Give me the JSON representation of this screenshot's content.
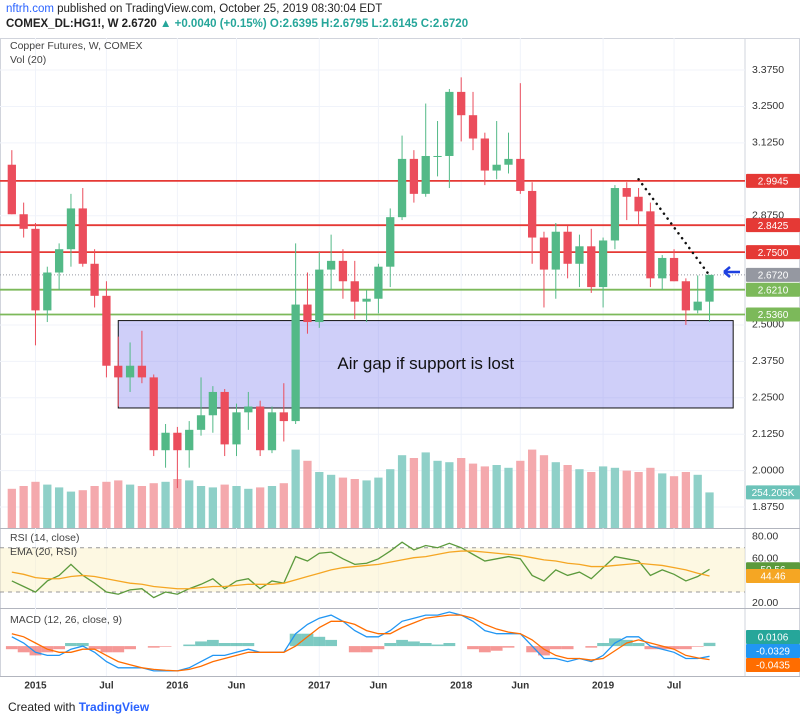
{
  "header": {
    "site": "nftrh.com",
    "published": "published on TradingView.com, October 25, 2019 08:30:04 EDT",
    "symbol": "COMEX_DL:HG1!, W",
    "price": "2.6720",
    "change": "+0.0040 (+0.15%)",
    "ohlc": "O:2.6395 H:2.6795 L:2.6145 C:2.6720"
  },
  "footer": {
    "prefix": "Created with",
    "brand": "TradingView"
  },
  "chart_data": [
    {
      "type": "candlestick",
      "title": "Copper Futures, W, COMEX",
      "x": [
        "2014-11",
        "2014-12",
        "2015-01",
        "2015-02",
        "2015-03",
        "2015-04",
        "2015-05",
        "2015-06",
        "2015-07",
        "2015-08",
        "2015-09",
        "2015-10",
        "2015-11",
        "2015-12",
        "2016-01",
        "2016-02",
        "2016-03",
        "2016-04",
        "2016-05",
        "2016-06",
        "2016-07",
        "2016-08",
        "2016-09",
        "2016-10",
        "2016-11",
        "2016-12",
        "2017-01",
        "2017-02",
        "2017-03",
        "2017-04",
        "2017-05",
        "2017-06",
        "2017-07",
        "2017-08",
        "2017-09",
        "2017-10",
        "2017-11",
        "2017-12",
        "2018-01",
        "2018-02",
        "2018-03",
        "2018-04",
        "2018-05",
        "2018-06",
        "2018-07",
        "2018-08",
        "2018-09",
        "2018-10",
        "2018-11",
        "2018-12",
        "2019-01",
        "2019-02",
        "2019-03",
        "2019-04",
        "2019-05",
        "2019-06",
        "2019-07",
        "2019-08",
        "2019-09",
        "2019-10"
      ],
      "open": [
        3.05,
        2.88,
        2.83,
        2.55,
        2.68,
        2.76,
        2.9,
        2.71,
        2.6,
        2.36,
        2.32,
        2.36,
        2.32,
        2.07,
        2.13,
        2.07,
        2.14,
        2.19,
        2.27,
        2.09,
        2.2,
        2.22,
        2.07,
        2.2,
        2.17,
        2.57,
        2.51,
        2.69,
        2.72,
        2.65,
        2.58,
        2.59,
        2.7,
        2.87,
        3.07,
        2.95,
        3.08,
        3.08,
        3.3,
        3.22,
        3.14,
        3.03,
        3.05,
        3.07,
        2.96,
        2.8,
        2.69,
        2.82,
        2.71,
        2.77,
        2.63,
        2.79,
        2.97,
        2.94,
        2.89,
        2.66,
        2.73,
        2.65,
        2.55,
        2.58
      ],
      "high": [
        3.1,
        2.92,
        2.85,
        2.7,
        2.78,
        2.95,
        2.97,
        2.76,
        2.65,
        2.46,
        2.44,
        2.48,
        2.33,
        2.16,
        2.15,
        2.17,
        2.32,
        2.29,
        2.28,
        2.23,
        2.27,
        2.24,
        2.22,
        2.3,
        2.78,
        2.68,
        2.75,
        2.81,
        2.76,
        2.72,
        2.62,
        2.71,
        2.9,
        3.15,
        3.1,
        3.26,
        3.2,
        3.31,
        3.35,
        3.3,
        3.16,
        3.2,
        3.16,
        3.33,
        2.99,
        2.82,
        2.85,
        2.84,
        2.81,
        2.83,
        2.8,
        2.98,
        2.99,
        2.97,
        2.92,
        2.74,
        2.76,
        2.66,
        2.67,
        2.67
      ],
      "low": [
        2.88,
        2.8,
        2.43,
        2.51,
        2.62,
        2.7,
        2.7,
        2.56,
        2.32,
        2.22,
        2.27,
        2.3,
        2.05,
        2.01,
        1.94,
        2.01,
        2.12,
        2.13,
        2.05,
        2.05,
        2.14,
        2.05,
        2.06,
        2.1,
        2.16,
        2.47,
        2.49,
        2.62,
        2.59,
        2.52,
        2.51,
        2.54,
        2.63,
        2.86,
        2.92,
        2.94,
        3.01,
        2.97,
        3.13,
        3.1,
        2.98,
        3.0,
        3.02,
        2.95,
        2.71,
        2.56,
        2.59,
        2.66,
        2.63,
        2.61,
        2.56,
        2.76,
        2.86,
        2.84,
        2.63,
        2.62,
        2.65,
        2.5,
        2.54,
        2.51
      ],
      "close": [
        2.88,
        2.83,
        2.55,
        2.68,
        2.76,
        2.9,
        2.71,
        2.6,
        2.36,
        2.32,
        2.36,
        2.32,
        2.07,
        2.13,
        2.07,
        2.14,
        2.19,
        2.27,
        2.09,
        2.2,
        2.22,
        2.07,
        2.2,
        2.17,
        2.57,
        2.51,
        2.69,
        2.72,
        2.65,
        2.58,
        2.59,
        2.7,
        2.87,
        3.07,
        2.95,
        3.08,
        3.08,
        3.3,
        3.22,
        3.14,
        3.03,
        3.05,
        3.07,
        2.96,
        2.8,
        2.69,
        2.82,
        2.71,
        2.77,
        2.63,
        2.79,
        2.97,
        2.94,
        2.89,
        2.66,
        2.73,
        2.65,
        2.55,
        2.58,
        2.672
      ],
      "up_color": "#53b987",
      "down_color": "#eb4d5c",
      "volume": {
        "name": "Vol (20)",
        "values": [
          280000,
          300000,
          330000,
          310000,
          290000,
          260000,
          270000,
          300000,
          330000,
          340000,
          310000,
          300000,
          320000,
          330000,
          350000,
          340000,
          300000,
          290000,
          310000,
          300000,
          280000,
          290000,
          300000,
          320000,
          560000,
          480000,
          400000,
          380000,
          360000,
          350000,
          340000,
          360000,
          420000,
          520000,
          500000,
          540000,
          480000,
          470000,
          500000,
          460000,
          440000,
          450000,
          430000,
          480000,
          560000,
          520000,
          470000,
          450000,
          420000,
          400000,
          440000,
          430000,
          410000,
          400000,
          430000,
          390000,
          370000,
          400000,
          380000,
          254205
        ],
        "last_label": "254.205K",
        "ylim": [
          0,
          3500000
        ],
        "up_color": "#8fd0c8",
        "down_color": "#f4a9ad"
      },
      "xlim": [
        "2014-10",
        "2020-01"
      ],
      "xticks": [
        {
          "value": "2015-01",
          "label": "2015"
        },
        {
          "value": "2015-07",
          "label": "Jul"
        },
        {
          "value": "2016-01",
          "label": "2016"
        },
        {
          "value": "2016-06",
          "label": "Jun"
        },
        {
          "value": "2017-01",
          "label": "2017"
        },
        {
          "value": "2017-06",
          "label": "Jun"
        },
        {
          "value": "2018-01",
          "label": "2018"
        },
        {
          "value": "2018-06",
          "label": "Jun"
        },
        {
          "value": "2019-01",
          "label": "2019"
        },
        {
          "value": "2019-07",
          "label": "Jul"
        }
      ],
      "ylim": [
        1.803,
        3.485
      ],
      "yticks": [
        {
          "value": 3.375,
          "label": "3.3750"
        },
        {
          "value": 3.25,
          "label": "3.2500"
        },
        {
          "value": 3.125,
          "label": "3.1250"
        },
        {
          "value": 2.875,
          "label": "2.8750"
        },
        {
          "value": 2.5,
          "label": "2.5000"
        },
        {
          "value": 2.375,
          "label": "2.3750"
        },
        {
          "value": 2.25,
          "label": "2.2500"
        },
        {
          "value": 2.125,
          "label": "2.1250"
        },
        {
          "value": 2,
          "label": "2.0000"
        },
        {
          "value": 1.875,
          "label": "1.8750"
        }
      ],
      "grid": true,
      "levels": [
        {
          "value": 2.9945,
          "color": "#e53935"
        },
        {
          "value": 2.8425,
          "color": "#e53935"
        },
        {
          "value": 2.75,
          "label": "2.7500",
          "color": "#e53935"
        },
        {
          "value": 2.672,
          "label": "2.6720",
          "color": "#9598a1",
          "style": "dotted"
        },
        {
          "value": 2.621,
          "label": "2.6210",
          "color": "#7cb95a"
        },
        {
          "value": 2.536,
          "label": "2.5360",
          "color": "#7cb95a"
        }
      ],
      "gap_box": {
        "x": [
          "2015-08",
          "2019-12"
        ],
        "y": [
          2.215,
          2.515
        ],
        "label": "Air gap if support is lost"
      },
      "trendline": {
        "x": [
          "2019-04",
          "2019-10"
        ],
        "y": [
          3.0,
          2.67
        ]
      }
    },
    {
      "type": "line",
      "ylim": [
        16.5,
        86
      ],
      "yticks": [
        {
          "value": 80,
          "label": "80.00"
        },
        {
          "value": 60,
          "label": "60.00"
        },
        {
          "value": 20,
          "label": "20.00"
        }
      ],
      "band": [
        30,
        70
      ],
      "series": [
        {
          "name": "RSI (14, close)",
          "color": "#5b9a3c",
          "values": [
            40,
            35,
            30,
            40,
            45,
            55,
            45,
            38,
            30,
            28,
            32,
            33,
            25,
            30,
            28,
            33,
            37,
            42,
            33,
            40,
            42,
            33,
            40,
            38,
            62,
            58,
            65,
            66,
            60,
            55,
            56,
            60,
            67,
            75,
            68,
            72,
            70,
            74,
            70,
            64,
            58,
            60,
            62,
            60,
            45,
            40,
            50,
            45,
            48,
            42,
            52,
            62,
            60,
            58,
            45,
            50,
            46,
            40,
            44,
            50.56
          ]
        },
        {
          "name": "EMA (20, RSI)",
          "color": "#f5a623",
          "values": [
            48,
            46,
            43,
            42,
            42,
            44,
            45,
            44,
            42,
            40,
            38,
            37,
            35,
            34,
            33,
            33,
            34,
            35,
            35,
            36,
            37,
            37,
            37,
            38,
            41,
            44,
            47,
            50,
            52,
            53,
            54,
            55,
            57,
            59,
            61,
            62,
            64,
            66,
            67,
            67,
            66,
            65,
            64,
            63,
            61,
            59,
            58,
            56,
            55,
            53,
            53,
            54,
            55,
            56,
            55,
            54,
            52,
            50,
            47,
            44.46
          ]
        }
      ]
    },
    {
      "type": "macd",
      "title": "MACD (12, 26, close, 9)",
      "ylim": [
        -0.09,
        0.11
      ],
      "histogram": {
        "up_color": "#26a69a",
        "down_color": "#ef5350",
        "values": [
          -0.01,
          -0.02,
          -0.03,
          -0.02,
          -0.01,
          0.01,
          0.01,
          -0.01,
          -0.02,
          -0.02,
          -0.01,
          0,
          -0.005,
          -0.002,
          0,
          0.005,
          0.015,
          0.02,
          0.01,
          0.01,
          0.01,
          0,
          0,
          0,
          0.04,
          0.04,
          0.03,
          0.02,
          0,
          -0.02,
          -0.02,
          -0.01,
          0.01,
          0.02,
          0.015,
          0.01,
          0.005,
          0.01,
          0,
          -0.01,
          -0.02,
          -0.015,
          -0.005,
          0,
          -0.02,
          -0.03,
          -0.01,
          -0.01,
          0,
          -0.005,
          0.01,
          0.025,
          0.02,
          0.01,
          -0.01,
          -0.01,
          -0.01,
          -0.01,
          -0.002,
          0.0106
        ]
      },
      "series": [
        {
          "color": "#2196f3",
          "values": [
            0.03,
            0.01,
            -0.02,
            -0.03,
            -0.03,
            -0.01,
            0,
            -0.02,
            -0.05,
            -0.07,
            -0.07,
            -0.07,
            -0.08,
            -0.08,
            -0.08,
            -0.07,
            -0.05,
            -0.03,
            -0.03,
            -0.02,
            -0.01,
            -0.02,
            -0.02,
            -0.02,
            0.04,
            0.07,
            0.09,
            0.1,
            0.08,
            0.05,
            0.03,
            0.03,
            0.05,
            0.08,
            0.09,
            0.1,
            0.1,
            0.11,
            0.1,
            0.08,
            0.05,
            0.04,
            0.04,
            0.04,
            0,
            -0.04,
            -0.04,
            -0.05,
            -0.04,
            -0.05,
            -0.03,
            0.01,
            0.03,
            0.03,
            0,
            -0.01,
            -0.02,
            -0.04,
            -0.04,
            -0.0329
          ]
        },
        {
          "color": "#ff6d00",
          "values": [
            0.04,
            0.03,
            0.01,
            -0.01,
            -0.02,
            -0.02,
            -0.01,
            -0.01,
            -0.03,
            -0.05,
            -0.06,
            -0.07,
            -0.075,
            -0.078,
            -0.08,
            -0.075,
            -0.065,
            -0.05,
            -0.04,
            -0.03,
            -0.02,
            -0.02,
            -0.02,
            -0.02,
            0,
            0.03,
            0.06,
            0.08,
            0.08,
            0.07,
            0.05,
            0.04,
            0.04,
            0.06,
            0.075,
            0.09,
            0.095,
            0.1,
            0.1,
            0.09,
            0.07,
            0.055,
            0.045,
            0.04,
            0.02,
            -0.01,
            -0.03,
            -0.04,
            -0.04,
            -0.045,
            -0.04,
            -0.015,
            0.01,
            0.02,
            0.01,
            0,
            -0.01,
            -0.03,
            -0.038,
            -0.0435
          ]
        }
      ]
    }
  ]
}
